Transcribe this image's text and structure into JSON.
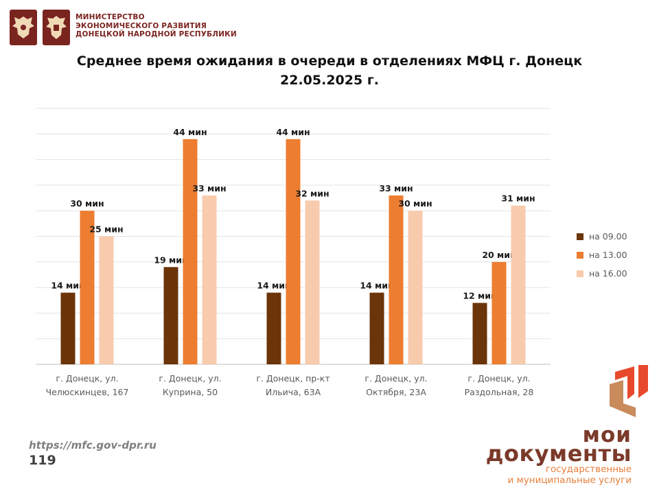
{
  "header": {
    "ministry_lines": [
      "МИНИСТЕРСТВО",
      "ЭКОНОМИЧЕСКОГО РАЗВИТИЯ",
      "ДОНЕЦКОЙ НАРОДНОЙ РЕСПУБЛИКИ"
    ]
  },
  "title_line1": "Среднее время ожидания в очереди в отделениях МФЦ г. Донецк",
  "title_line2": "22.05.2025 г.",
  "chart_data": {
    "type": "bar",
    "title": "Среднее время ожидания в очереди в отделениях МФЦ г. Донецк 22.05.2025 г.",
    "categories": [
      [
        "г. Донецк, ул.",
        "Челюскинцев, 167"
      ],
      [
        "г. Донецк, ул.",
        "Куприна, 50"
      ],
      [
        "г. Донецк, пр-кт",
        "Ильича, 63А"
      ],
      [
        "г. Донецк, ул.",
        "Октября, 23А"
      ],
      [
        "г. Донецк, ул.",
        "Раздольная, 28"
      ]
    ],
    "series": [
      {
        "name": "на 09.00",
        "color": "#6b3409",
        "values": [
          14,
          19,
          14,
          14,
          12
        ]
      },
      {
        "name": "на 13.00",
        "color": "#ed7d31",
        "values": [
          30,
          44,
          44,
          33,
          20
        ]
      },
      {
        "name": "на 16.00",
        "color": "#f8cbad",
        "values": [
          25,
          33,
          32,
          30,
          31
        ]
      }
    ],
    "value_suffix": " мин",
    "ylim": [
      0,
      50
    ],
    "grid": true,
    "legend": "right"
  },
  "footer": {
    "url": "https://mfc.gov-dpr.ru",
    "page": "119"
  },
  "brand": {
    "line1": "мои",
    "line2": "документы",
    "tagline1": "государственные",
    "tagline2": "и муниципальные услуги"
  }
}
